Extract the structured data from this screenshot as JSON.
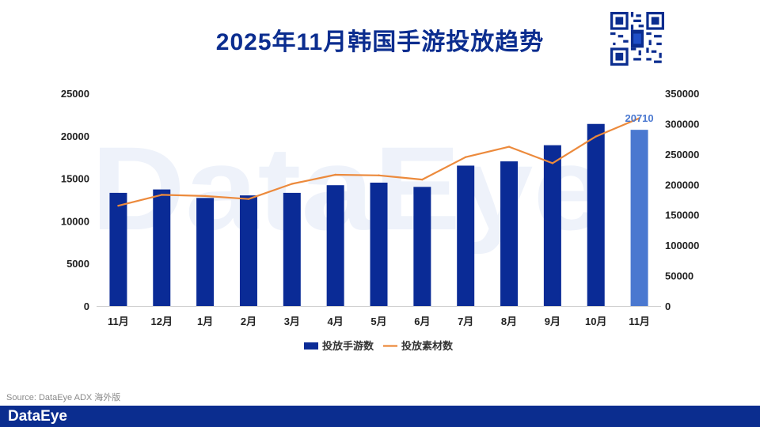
{
  "title": "2025年11月韩国手游投放趋势",
  "source": "Source: DataEye ADX 海外版",
  "brand": "DataEye",
  "watermark": "DataEye",
  "colors": {
    "bar": "#0a2b96",
    "bar_highlight": "#4a78d0",
    "line": "#ec8a3c",
    "title": "#0b2d8f",
    "footer": "#0b2d8f"
  },
  "chart_data": {
    "type": "bar",
    "title": "2025年11月韩国手游投放趋势",
    "categories": [
      "11月",
      "12月",
      "1月",
      "2月",
      "3月",
      "4月",
      "5月",
      "6月",
      "7月",
      "8月",
      "9月",
      "10月",
      "11月"
    ],
    "y_left": {
      "lim": [
        0,
        25000
      ],
      "ticks": [
        "0",
        "5000",
        "10000",
        "15000",
        "20000",
        "25000"
      ]
    },
    "y_right": {
      "lim": [
        0,
        350000
      ],
      "ticks": [
        "0",
        "50000",
        "100000",
        "150000",
        "200000",
        "250000",
        "300000",
        "350000"
      ]
    },
    "series": [
      {
        "name": "投放手游数",
        "type": "bar",
        "axis": "left",
        "values": [
          13300,
          13700,
          12700,
          13000,
          13300,
          14200,
          14500,
          14000,
          16500,
          17000,
          18900,
          21400,
          20710
        ]
      },
      {
        "name": "投放素材数",
        "type": "line",
        "axis": "right",
        "values": [
          165000,
          183000,
          181000,
          176000,
          201000,
          216000,
          215000,
          208000,
          245000,
          262000,
          235000,
          279000,
          309000
        ]
      }
    ],
    "data_labels": [
      {
        "index": 12,
        "series": 0,
        "text": "20710"
      }
    ],
    "legend": {
      "placement": "bottom",
      "entries": [
        "投放手游数",
        "投放素材数"
      ]
    },
    "grid": false
  }
}
